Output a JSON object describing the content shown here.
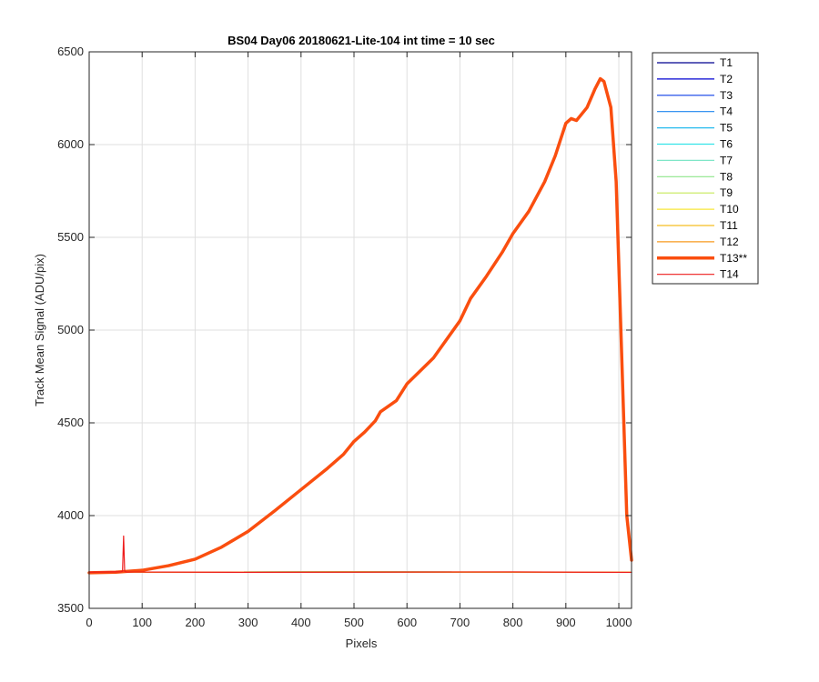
{
  "chart_data": {
    "type": "line",
    "title": "BS04 Day06 20180621-Lite-104 int time = 10 sec",
    "xlabel": "Pixels",
    "ylabel": "Track Mean Signal (ADU/pix)",
    "xlim": [
      0,
      1024
    ],
    "ylim": [
      3500,
      6500
    ],
    "xticks": [
      0,
      100,
      200,
      300,
      400,
      500,
      600,
      700,
      800,
      900,
      1000
    ],
    "yticks": [
      3500,
      4000,
      4500,
      5000,
      5500,
      6000,
      6500
    ],
    "grid": true,
    "legend_position": "outside-top-right",
    "series": [
      {
        "name": "T1",
        "color": "#00008f",
        "width": 1.2,
        "values": [
          [
            0,
            3695
          ],
          [
            500,
            3696
          ],
          [
            1024,
            3695
          ]
        ]
      },
      {
        "name": "T2",
        "color": "#0000d0",
        "width": 1.2,
        "values": [
          [
            0,
            3695
          ],
          [
            500,
            3696
          ],
          [
            1024,
            3695
          ]
        ]
      },
      {
        "name": "T3",
        "color": "#0f3fe6",
        "width": 1.2,
        "values": [
          [
            0,
            3695
          ],
          [
            500,
            3696
          ],
          [
            1024,
            3695
          ]
        ]
      },
      {
        "name": "T4",
        "color": "#1f86ef",
        "width": 1.2,
        "values": [
          [
            0,
            3695
          ],
          [
            500,
            3696
          ],
          [
            1024,
            3695
          ]
        ]
      },
      {
        "name": "T5",
        "color": "#26baee",
        "width": 1.2,
        "values": [
          [
            0,
            3695
          ],
          [
            500,
            3696
          ],
          [
            1024,
            3695
          ]
        ]
      },
      {
        "name": "T6",
        "color": "#33e3e8",
        "width": 1.2,
        "values": [
          [
            0,
            3695
          ],
          [
            500,
            3696
          ],
          [
            1024,
            3695
          ]
        ]
      },
      {
        "name": "T7",
        "color": "#7fe6c7",
        "width": 1.2,
        "values": [
          [
            0,
            3695
          ],
          [
            500,
            3696
          ],
          [
            1024,
            3695
          ]
        ]
      },
      {
        "name": "T8",
        "color": "#8ee68a",
        "width": 1.2,
        "values": [
          [
            0,
            3695
          ],
          [
            500,
            3696
          ],
          [
            1024,
            3695
          ]
        ]
      },
      {
        "name": "T9",
        "color": "#c6ea58",
        "width": 1.2,
        "values": [
          [
            0,
            3695
          ],
          [
            500,
            3696
          ],
          [
            1024,
            3695
          ]
        ]
      },
      {
        "name": "T10",
        "color": "#f7e53a",
        "width": 1.2,
        "values": [
          [
            0,
            3695
          ],
          [
            500,
            3696
          ],
          [
            1024,
            3695
          ]
        ]
      },
      {
        "name": "T11",
        "color": "#f5be20",
        "width": 1.2,
        "values": [
          [
            0,
            3695
          ],
          [
            500,
            3696
          ],
          [
            1024,
            3695
          ]
        ]
      },
      {
        "name": "T12",
        "color": "#f79a1f",
        "width": 1.2,
        "values": [
          [
            0,
            3695
          ],
          [
            700,
            3697
          ],
          [
            1024,
            3695
          ]
        ]
      },
      {
        "name": "T13**",
        "color": "#fa4e0f",
        "width": 3.5,
        "values": [
          [
            0,
            3692
          ],
          [
            50,
            3695
          ],
          [
            100,
            3705
          ],
          [
            150,
            3730
          ],
          [
            200,
            3765
          ],
          [
            250,
            3830
          ],
          [
            300,
            3915
          ],
          [
            350,
            4025
          ],
          [
            400,
            4140
          ],
          [
            450,
            4255
          ],
          [
            480,
            4330
          ],
          [
            500,
            4400
          ],
          [
            520,
            4450
          ],
          [
            540,
            4510
          ],
          [
            550,
            4560
          ],
          [
            580,
            4620
          ],
          [
            600,
            4710
          ],
          [
            650,
            4850
          ],
          [
            700,
            5050
          ],
          [
            720,
            5170
          ],
          [
            750,
            5290
          ],
          [
            780,
            5420
          ],
          [
            800,
            5520
          ],
          [
            830,
            5640
          ],
          [
            860,
            5800
          ],
          [
            880,
            5940
          ],
          [
            900,
            6115
          ],
          [
            910,
            6140
          ],
          [
            920,
            6130
          ],
          [
            940,
            6200
          ],
          [
            955,
            6300
          ],
          [
            965,
            6355
          ],
          [
            972,
            6340
          ],
          [
            985,
            6200
          ],
          [
            995,
            5800
          ],
          [
            1005,
            4900
          ],
          [
            1015,
            4000
          ],
          [
            1024,
            3760
          ]
        ]
      },
      {
        "name": "T14",
        "color": "#ee1c1c",
        "width": 1.2,
        "values": [
          [
            0,
            3695
          ],
          [
            60,
            3697
          ],
          [
            63,
            3700
          ],
          [
            65,
            3890
          ],
          [
            67,
            3700
          ],
          [
            70,
            3696
          ],
          [
            300,
            3694
          ],
          [
            500,
            3695
          ],
          [
            800,
            3696
          ],
          [
            1024,
            3694
          ]
        ]
      }
    ]
  }
}
